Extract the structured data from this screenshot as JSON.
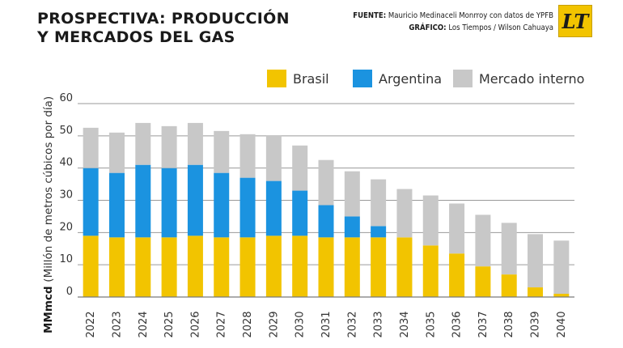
{
  "header": {
    "title_line1": "PROSPECTIVA: PRODUCCIÓN",
    "title_line2": "Y MERCADOS DEL GAS",
    "source_label": "FUENTE:",
    "source_text": "Mauricio Medinaceli Monrroy con datos de YPFB",
    "graphic_label": "GRÁFICO:",
    "graphic_text": "Los Tiempos / Wilson Cahuaya",
    "logo_text": "LT"
  },
  "colors": {
    "brasil": "#f2c400",
    "argentina": "#1b93e0",
    "mercado_interno": "#c8c8c8",
    "grid": "#9a9a9a",
    "axis_text": "#333333"
  },
  "chart_data": {
    "type": "bar",
    "stacked": true,
    "categories": [
      "2022",
      "2023",
      "2024",
      "2025",
      "2026",
      "2027",
      "2028",
      "2029",
      "2030",
      "2031",
      "2032",
      "2033",
      "2034",
      "2035",
      "2036",
      "2037",
      "2038",
      "2039",
      "2040"
    ],
    "series": [
      {
        "name": "Brasil",
        "color": "#f2c400",
        "values": [
          19,
          18.5,
          18.5,
          18.5,
          19,
          18.5,
          18.5,
          19,
          19,
          18.5,
          18.5,
          18.5,
          18.5,
          16,
          13.5,
          9.5,
          7,
          3,
          1
        ]
      },
      {
        "name": "Argentina",
        "color": "#1b93e0",
        "values": [
          21,
          20,
          22.5,
          21.5,
          22,
          20,
          18.5,
          17,
          14,
          10,
          6.5,
          3.5,
          0,
          0,
          0,
          0,
          0,
          0,
          0
        ]
      },
      {
        "name": "Mercado interno",
        "color": "#c8c8c8",
        "values": [
          12.5,
          12.5,
          13,
          13,
          13,
          13,
          13.5,
          14,
          14,
          14,
          14,
          14.5,
          15,
          15.5,
          15.5,
          16,
          16,
          16.5,
          16.5
        ]
      }
    ],
    "yticks": [
      0,
      10,
      20,
      30,
      40,
      50,
      60
    ],
    "ylim": [
      0,
      60
    ],
    "ylabel_bold": "MMmcd",
    "ylabel_rest": "(Millón de metros cúbicos por día)",
    "xlabel": "",
    "grid": true,
    "legend_position": "top-right"
  }
}
